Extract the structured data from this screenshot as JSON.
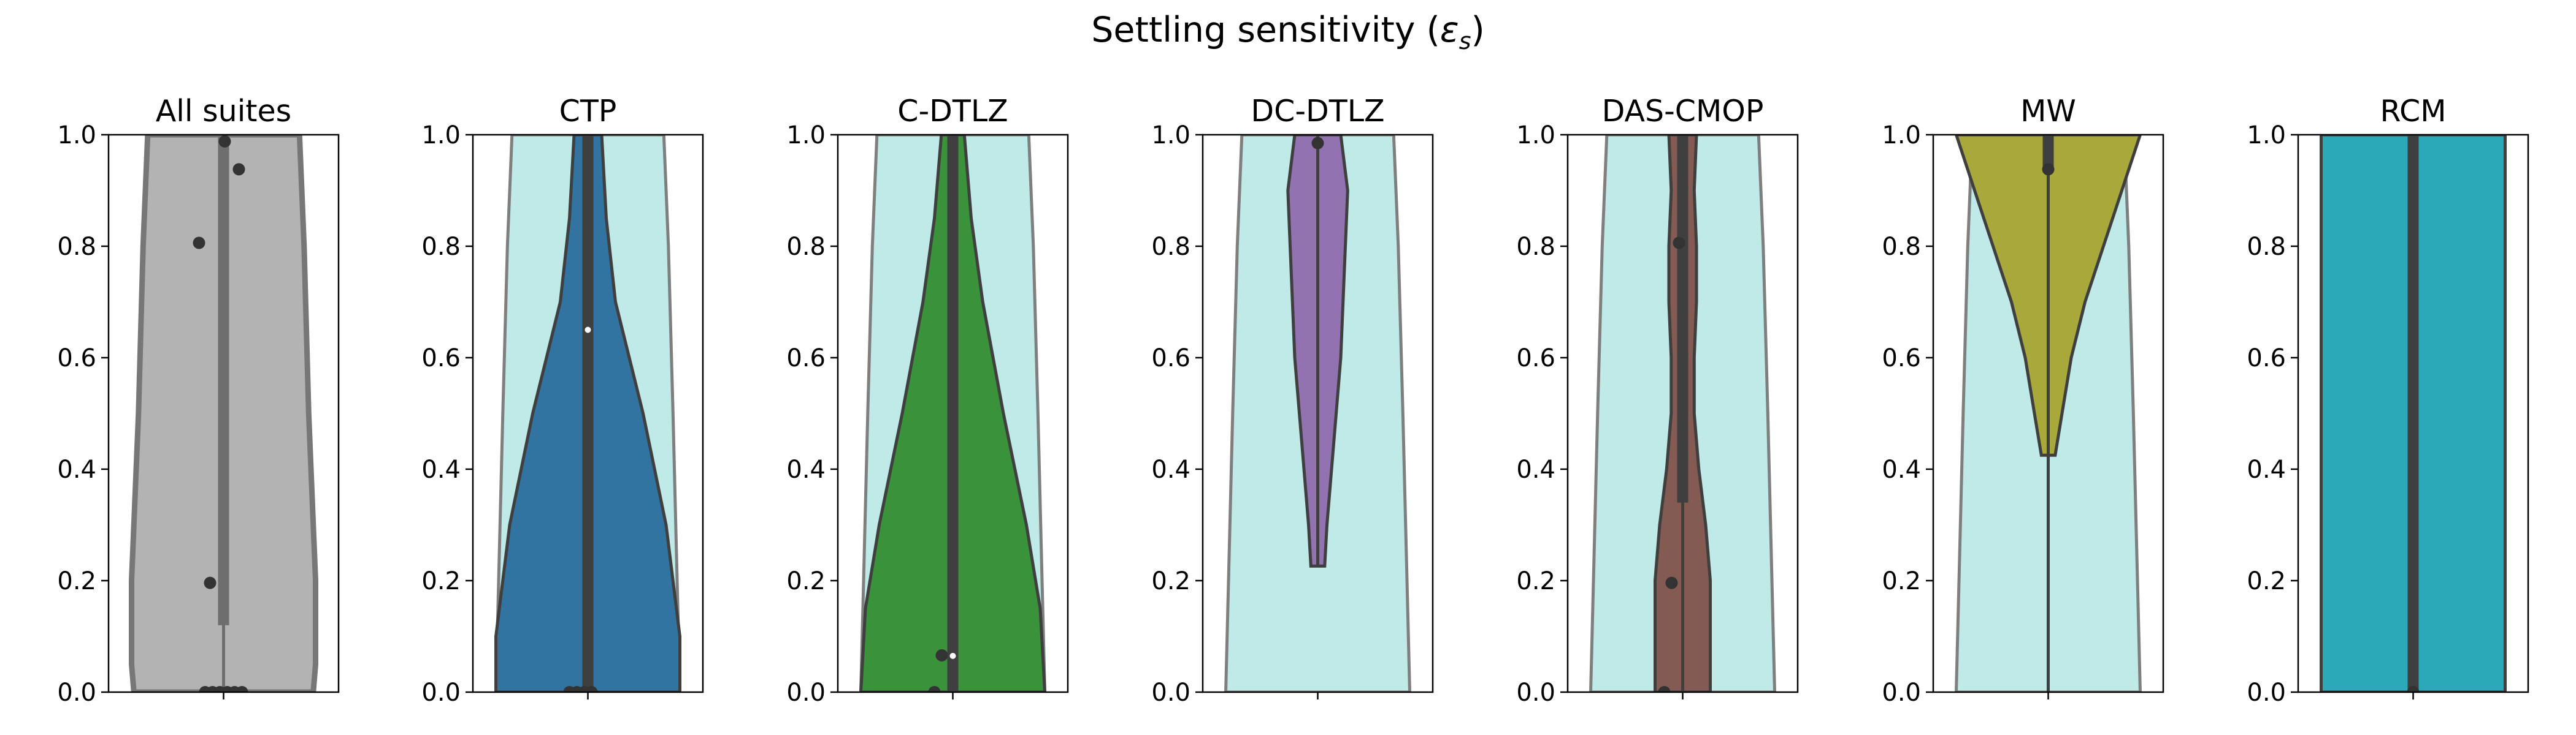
{
  "figure": {
    "title": "Settling sensitivity (εs)",
    "title_main": "Settling sensitivity (",
    "title_symbol": "ε",
    "title_subscript": "s",
    "title_close": ")"
  },
  "colors": {
    "background_violin": "#bfeae7",
    "background_edge": "#7f7f7f",
    "violin_edge": "#3f3f3f",
    "box": "#3f3f3f",
    "point": "#333333",
    "median": "#ffffff"
  },
  "chart_data": [
    {
      "type": "violin",
      "title": "All suites",
      "color": "#b3b3b3",
      "ylim": [
        0,
        1
      ],
      "yticks": [
        "0.0",
        "0.2",
        "0.4",
        "0.6",
        "0.8",
        "1.0"
      ],
      "xticks": [
        ""
      ],
      "background": false,
      "profile": [
        [
          0,
          0.195
        ],
        [
          0.05,
          0.2
        ],
        [
          0.2,
          0.2
        ],
        [
          0.5,
          0.185
        ],
        [
          0.8,
          0.175
        ],
        [
          1,
          0.165
        ]
      ],
      "box": [
        0.12,
        1.0
      ],
      "median": null,
      "points": [
        [
          0,
          0.0
        ],
        [
          0,
          0.0
        ],
        [
          0,
          0.0
        ],
        [
          0,
          0.0
        ],
        [
          0,
          0.0
        ],
        [
          0,
          0.0
        ],
        [
          0,
          0.196
        ],
        [
          0,
          0.806
        ],
        [
          0,
          0.938
        ],
        [
          0,
          0.988
        ]
      ]
    },
    {
      "type": "violin",
      "title": "CTP",
      "color": "#3274a1",
      "ylim": [
        0,
        1
      ],
      "yticks": [
        "0.0",
        "0.2",
        "0.4",
        "0.6",
        "0.8",
        "1.0"
      ],
      "xticks": [
        ""
      ],
      "background": true,
      "profile": [
        [
          0,
          0.2
        ],
        [
          0.1,
          0.2
        ],
        [
          0.3,
          0.17
        ],
        [
          0.5,
          0.12
        ],
        [
          0.7,
          0.06
        ],
        [
          0.85,
          0.04
        ],
        [
          1,
          0.03
        ]
      ],
      "box": [
        0.0,
        1.0
      ],
      "median": 0.65,
      "points": [
        [
          0,
          0.0
        ],
        [
          0,
          0.0
        ],
        [
          0,
          0.0
        ],
        [
          0,
          0.0
        ]
      ]
    },
    {
      "type": "violin",
      "title": "C-DTLZ",
      "color": "#3a923a",
      "ylim": [
        0,
        1
      ],
      "yticks": [
        "0.0",
        "0.2",
        "0.4",
        "0.6",
        "0.8",
        "1.0"
      ],
      "xticks": [
        ""
      ],
      "background": true,
      "profile": [
        [
          0,
          0.2
        ],
        [
          0.15,
          0.19
        ],
        [
          0.3,
          0.16
        ],
        [
          0.5,
          0.11
        ],
        [
          0.7,
          0.065
        ],
        [
          0.85,
          0.04
        ],
        [
          1,
          0.025
        ]
      ],
      "box": [
        0.0,
        1.0
      ],
      "median": 0.065,
      "points": [
        [
          0,
          0.0
        ],
        [
          0,
          0.066
        ]
      ]
    },
    {
      "type": "violin",
      "title": "DC-DTLZ",
      "color": "#9372b2",
      "ylim": [
        0,
        1
      ],
      "yticks": [
        "0.0",
        "0.2",
        "0.4",
        "0.6",
        "0.8",
        "1.0"
      ],
      "xticks": [
        ""
      ],
      "background": true,
      "profile": [
        [
          0.226,
          0.015
        ],
        [
          0.3,
          0.02
        ],
        [
          0.45,
          0.035
        ],
        [
          0.6,
          0.05
        ],
        [
          0.8,
          0.06
        ],
        [
          0.9,
          0.065
        ],
        [
          1,
          0.05
        ]
      ],
      "box": null,
      "median": null,
      "points": [
        [
          0,
          0.985
        ]
      ]
    },
    {
      "type": "violin",
      "title": "DAS-CMOP",
      "color": "#845b53",
      "ylim": [
        0,
        1
      ],
      "yticks": [
        "0.0",
        "0.2",
        "0.4",
        "0.6",
        "0.8",
        "1.0"
      ],
      "xticks": [
        ""
      ],
      "background": true,
      "profile": [
        [
          0,
          0.06
        ],
        [
          0.1,
          0.06
        ],
        [
          0.2,
          0.06
        ],
        [
          0.3,
          0.05
        ],
        [
          0.4,
          0.035
        ],
        [
          0.5,
          0.025
        ],
        [
          0.6,
          0.025
        ],
        [
          0.7,
          0.03
        ],
        [
          0.8,
          0.03
        ],
        [
          0.9,
          0.025
        ],
        [
          1,
          0.03
        ]
      ],
      "box": [
        0.34,
        1.0
      ],
      "median": null,
      "points": [
        [
          0,
          0.0
        ],
        [
          0,
          0.196
        ],
        [
          0,
          0.806
        ]
      ]
    },
    {
      "type": "violin",
      "title": "MW",
      "color": "#a9a83a",
      "ylim": [
        0,
        1
      ],
      "yticks": [
        "0.0",
        "0.2",
        "0.4",
        "0.6",
        "0.8",
        "1.0"
      ],
      "xticks": [
        ""
      ],
      "background": true,
      "profile": [
        [
          0.425,
          0.015
        ],
        [
          0.5,
          0.03
        ],
        [
          0.6,
          0.05
        ],
        [
          0.7,
          0.08
        ],
        [
          0.8,
          0.12
        ],
        [
          0.9,
          0.16
        ],
        [
          1,
          0.2
        ]
      ],
      "box": [
        0.94,
        1.0
      ],
      "median": null,
      "points": [
        [
          0,
          0.938
        ]
      ]
    },
    {
      "type": "violin",
      "title": "RCM",
      "color": "#2ba9b8",
      "ylim": [
        0,
        1
      ],
      "yticks": [
        "0.0",
        "0.2",
        "0.4",
        "0.6",
        "0.8",
        "1.0"
      ],
      "xticks": [
        ""
      ],
      "background": false,
      "profile": [
        [
          0,
          0.2
        ],
        [
          0.5,
          0.2
        ],
        [
          1,
          0.2
        ]
      ],
      "box": [
        0.0,
        1.0
      ],
      "median": null,
      "points": [
        [
          0,
          0.0
        ]
      ]
    }
  ]
}
